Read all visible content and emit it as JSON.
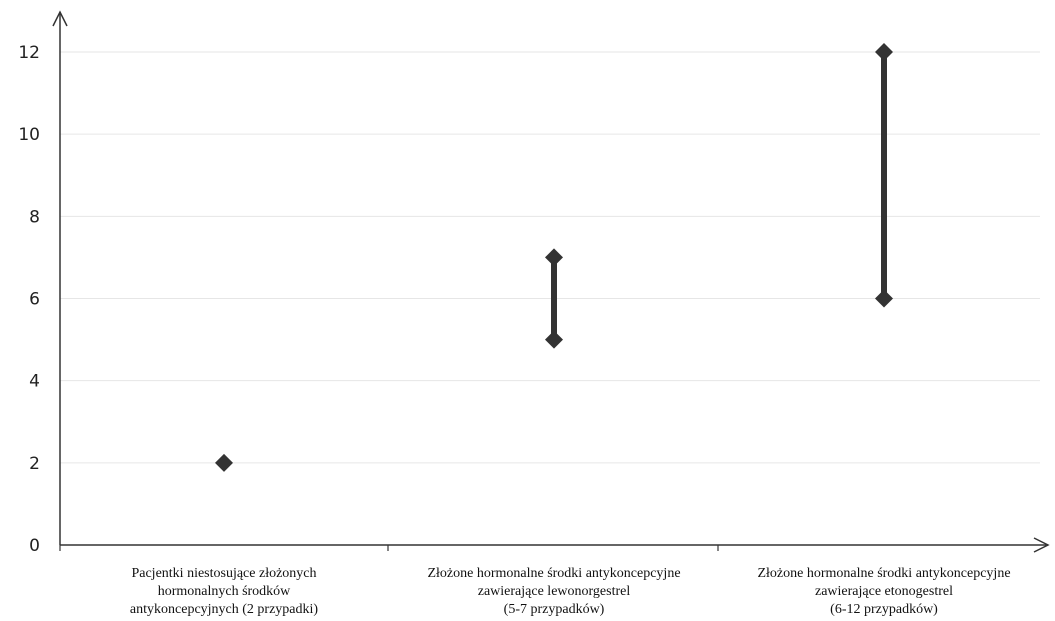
{
  "chart_data": {
    "type": "range",
    "title": "",
    "xlabel": "",
    "ylabel": "",
    "ylim": [
      0,
      12
    ],
    "y_ticks": [
      0,
      2,
      4,
      6,
      8,
      10,
      12
    ],
    "grid": true,
    "categories": [
      {
        "label_lines": [
          "Pacjentki niestosujące złożonych",
          "hormonalnych środków",
          "antykoncepcyjnych (2 przypadki)"
        ],
        "min": 2,
        "max": 2
      },
      {
        "label_lines": [
          "Złożone hormonalne środki antykoncepcyjne",
          "zawierające lewonorgestrel",
          "(5-7 przypadków)"
        ],
        "min": 5,
        "max": 7
      },
      {
        "label_lines": [
          "Złożone hormonalne środki antykoncepcyjne",
          "zawierające etonogestrel",
          "(6-12 przypadków)"
        ],
        "min": 6,
        "max": 12
      }
    ],
    "colors": {
      "marker": "#333333",
      "axis": "#333333",
      "grid": "#e6e6e6"
    }
  }
}
